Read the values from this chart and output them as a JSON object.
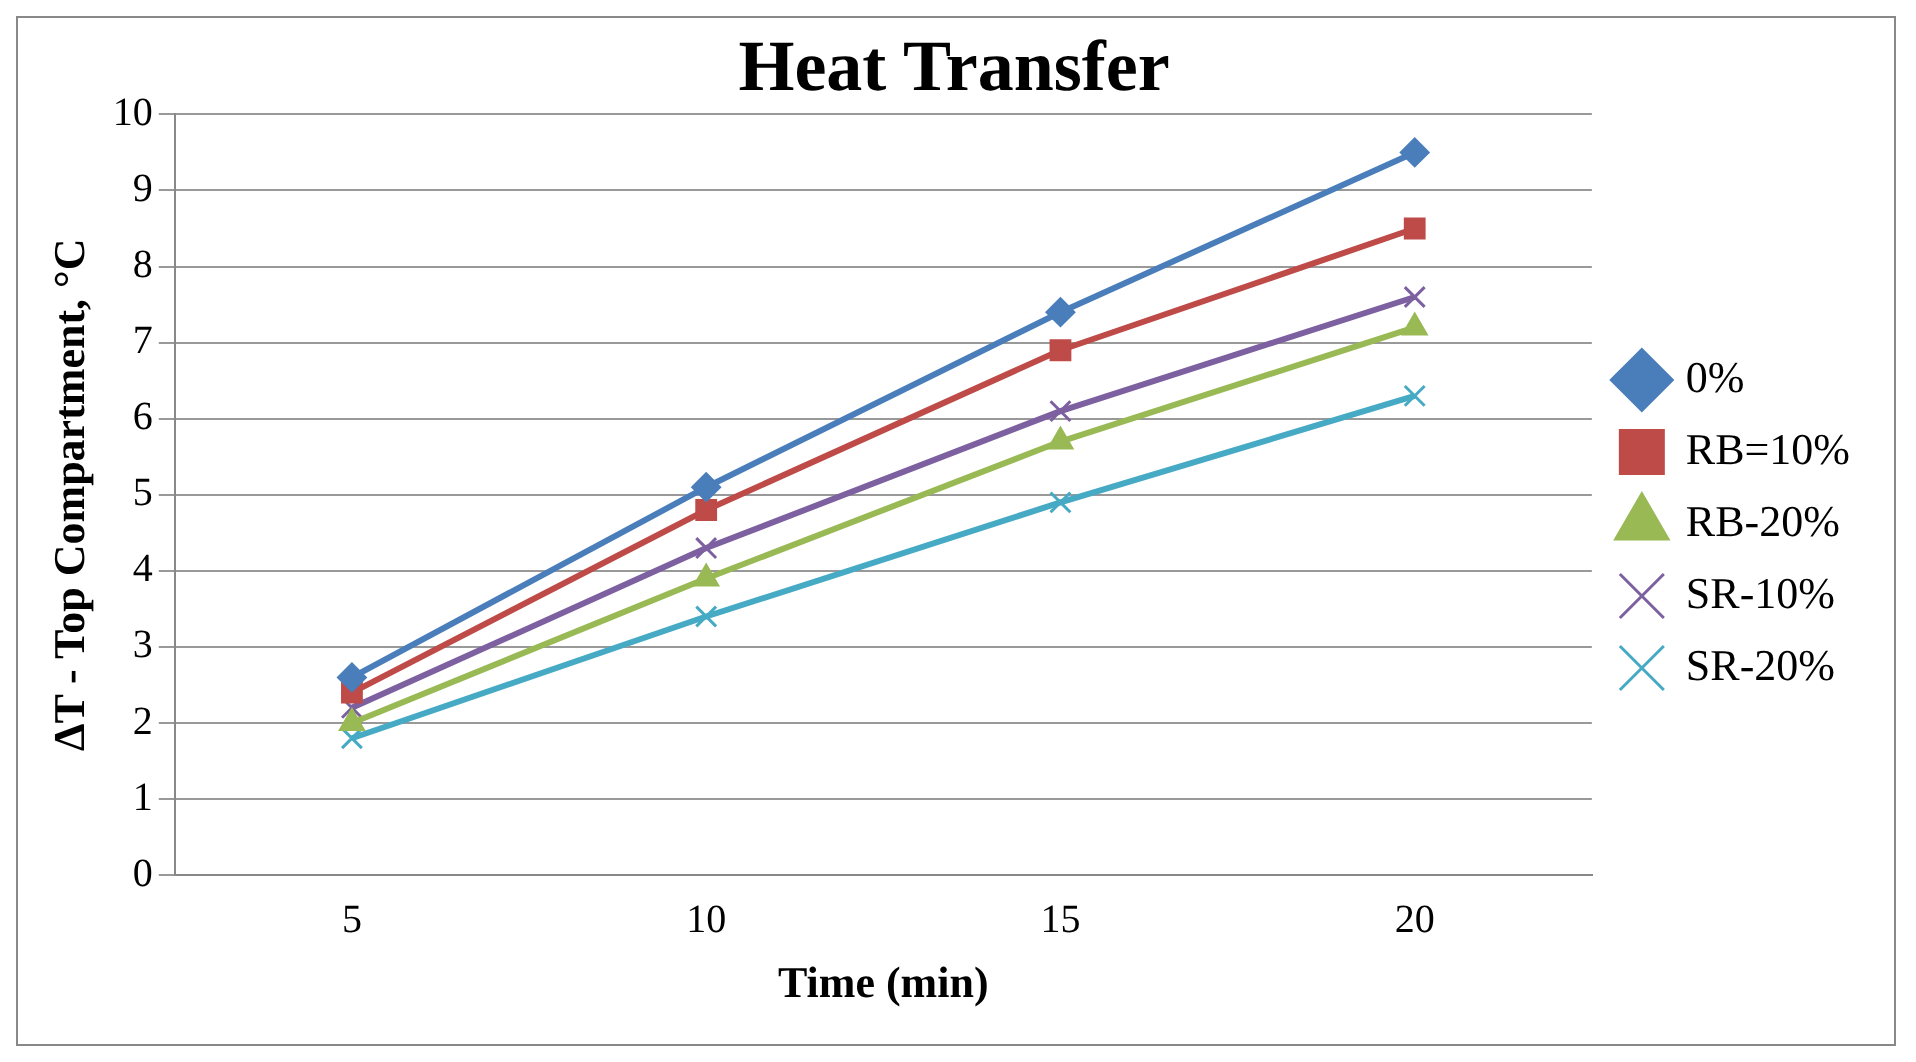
{
  "chart_data": {
    "type": "line",
    "title": "Heat Transfer",
    "xlabel": "Time (min)",
    "ylabel": "ΔT - Top Compartment, °C",
    "categories": [
      "5",
      "10",
      "15",
      "20"
    ],
    "series": [
      {
        "name": "0%",
        "color": "#4a7ebb",
        "marker": "diamond",
        "values": [
          2.6,
          5.1,
          7.4,
          9.5
        ]
      },
      {
        "name": "RB=10%",
        "color": "#be4b48",
        "marker": "square",
        "values": [
          2.4,
          4.8,
          6.9,
          8.5
        ]
      },
      {
        "name": "RB-20%",
        "color": "#98b954",
        "marker": "triangle",
        "values": [
          2.0,
          3.9,
          5.7,
          7.2
        ]
      },
      {
        "name": "SR-10%",
        "color": "#7d60a0",
        "marker": "cross",
        "values": [
          2.2,
          4.3,
          6.1,
          7.6
        ]
      },
      {
        "name": "SR-20%",
        "color": "#46aac5",
        "marker": "cross",
        "values": [
          1.8,
          3.4,
          4.9,
          6.3
        ]
      }
    ],
    "ylim": [
      0,
      10
    ],
    "yticks": [
      0,
      1,
      2,
      3,
      4,
      5,
      6,
      7,
      8,
      9,
      10
    ],
    "grid": "y",
    "legend": "right"
  }
}
